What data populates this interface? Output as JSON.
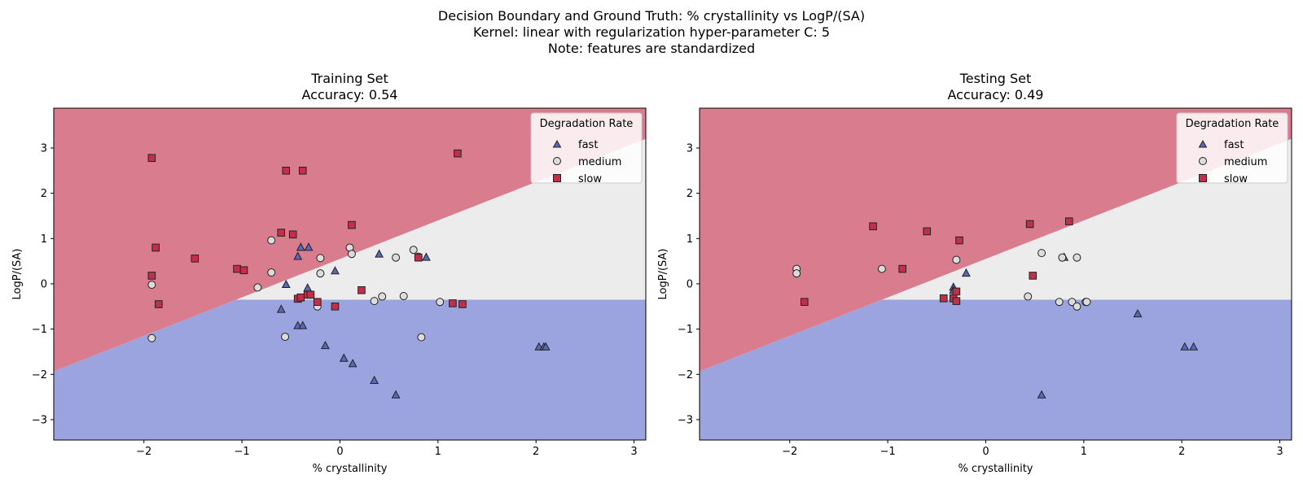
{
  "suptitle": [
    "Decision Boundary and Ground Truth: % crystallinity vs LogP/(SA)",
    "Kernel: linear with regularization hyper-parameter C: 5",
    "Note: features are standardized"
  ],
  "colors": {
    "region_slow": "#d97d8e",
    "region_medium": "#ececec",
    "region_fast": "#9ba4df",
    "marker_fast": "#5a68b8",
    "marker_medium": "#dcdcdc",
    "marker_slow": "#c0304a"
  },
  "chart_data": [
    {
      "type": "scatter",
      "title": "Training Set",
      "subtitle": "Accuracy: 0.54",
      "xlabel": "% crystallinity",
      "ylabel": "LogP/(SA)",
      "xlim": [
        -2.92,
        3.12
      ],
      "ylim": [
        -3.45,
        3.88
      ],
      "xticks": [
        -2,
        -1,
        0,
        1,
        2,
        3
      ],
      "yticks": [
        -3,
        -2,
        -1,
        0,
        1,
        2,
        3
      ],
      "grid": false,
      "legend_title": "Degradation Rate",
      "legend_position": "top-right",
      "decision_regions": {
        "upper_line": {
          "slope": 0.85,
          "intercept": 0.55
        },
        "lower_threshold": -0.35,
        "upper_class": "slow",
        "middle_class": "medium",
        "lower_class": "fast"
      },
      "series": [
        {
          "name": "fast",
          "marker": "triangle",
          "points": [
            [
              -0.4,
              0.8
            ],
            [
              -0.32,
              0.8
            ],
            [
              -0.43,
              0.6
            ],
            [
              -0.05,
              0.28
            ],
            [
              0.4,
              0.65
            ],
            [
              0.88,
              0.58
            ],
            [
              -0.55,
              -0.02
            ],
            [
              -0.33,
              -0.1
            ],
            [
              -0.6,
              -0.57
            ],
            [
              -0.43,
              -0.93
            ],
            [
              -0.38,
              -0.93
            ],
            [
              -0.15,
              -1.37
            ],
            [
              0.04,
              -1.65
            ],
            [
              0.13,
              -1.77
            ],
            [
              0.35,
              -2.14
            ],
            [
              0.57,
              -2.46
            ],
            [
              2.03,
              -1.4
            ],
            [
              2.08,
              -1.4
            ],
            [
              2.1,
              -1.4
            ]
          ]
        },
        {
          "name": "medium",
          "marker": "circle",
          "points": [
            [
              -1.92,
              -0.02
            ],
            [
              -1.92,
              -1.2
            ],
            [
              -0.7,
              0.96
            ],
            [
              -0.7,
              0.25
            ],
            [
              -0.84,
              -0.08
            ],
            [
              -0.56,
              -1.17
            ],
            [
              -0.2,
              0.57
            ],
            [
              -0.2,
              0.23
            ],
            [
              -0.23,
              -0.5
            ],
            [
              0.1,
              0.8
            ],
            [
              0.12,
              0.66
            ],
            [
              0.43,
              -0.28
            ],
            [
              0.35,
              -0.38
            ],
            [
              0.57,
              0.58
            ],
            [
              0.65,
              -0.27
            ],
            [
              0.75,
              0.75
            ],
            [
              0.8,
              0.6
            ],
            [
              1.02,
              -0.4
            ],
            [
              0.83,
              -1.18
            ]
          ]
        },
        {
          "name": "slow",
          "marker": "square",
          "points": [
            [
              -1.92,
              2.78
            ],
            [
              -1.92,
              0.18
            ],
            [
              -1.88,
              0.8
            ],
            [
              -1.85,
              -0.45
            ],
            [
              -1.48,
              0.56
            ],
            [
              -1.05,
              0.33
            ],
            [
              -0.98,
              0.3
            ],
            [
              -0.6,
              1.13
            ],
            [
              -0.48,
              1.09
            ],
            [
              -0.55,
              2.5
            ],
            [
              -0.38,
              2.5
            ],
            [
              -0.43,
              -0.33
            ],
            [
              -0.4,
              -0.3
            ],
            [
              -0.33,
              -0.24
            ],
            [
              -0.3,
              -0.24
            ],
            [
              -0.23,
              -0.4
            ],
            [
              -0.05,
              -0.5
            ],
            [
              0.12,
              1.3
            ],
            [
              0.22,
              -0.14
            ],
            [
              0.8,
              0.58
            ],
            [
              1.15,
              -0.43
            ],
            [
              1.2,
              2.88
            ],
            [
              1.25,
              -0.45
            ]
          ]
        }
      ]
    },
    {
      "type": "scatter",
      "title": "Testing Set",
      "subtitle": "Accuracy: 0.49",
      "xlabel": "% crystallinity",
      "ylabel": "LogP/(SA)",
      "xlim": [
        -2.92,
        3.12
      ],
      "ylim": [
        -3.45,
        3.88
      ],
      "xticks": [
        -2,
        -1,
        0,
        1,
        2,
        3
      ],
      "yticks": [
        -3,
        -2,
        -1,
        0,
        1,
        2,
        3
      ],
      "grid": false,
      "legend_title": "Degradation Rate",
      "legend_position": "top-right",
      "decision_regions": {
        "upper_line": {
          "slope": 0.85,
          "intercept": 0.55
        },
        "lower_threshold": -0.35,
        "upper_class": "slow",
        "middle_class": "medium",
        "lower_class": "fast"
      },
      "series": [
        {
          "name": "fast",
          "marker": "triangle",
          "points": [
            [
              -0.33,
              -0.08
            ],
            [
              -0.33,
              -0.15
            ],
            [
              -0.2,
              0.23
            ],
            [
              0.8,
              0.58
            ],
            [
              1.55,
              -0.67
            ],
            [
              2.03,
              -1.4
            ],
            [
              2.12,
              -1.4
            ],
            [
              0.57,
              -2.46
            ]
          ]
        },
        {
          "name": "medium",
          "marker": "circle",
          "points": [
            [
              -1.93,
              0.33
            ],
            [
              -1.93,
              0.23
            ],
            [
              -1.06,
              0.33
            ],
            [
              -0.3,
              0.53
            ],
            [
              0.43,
              -0.28
            ],
            [
              0.57,
              0.68
            ],
            [
              0.78,
              0.58
            ],
            [
              0.93,
              0.58
            ],
            [
              0.75,
              -0.4
            ],
            [
              0.88,
              -0.4
            ],
            [
              0.93,
              -0.5
            ],
            [
              1.02,
              -0.4
            ],
            [
              1.03,
              -0.4
            ]
          ]
        },
        {
          "name": "slow",
          "marker": "square",
          "points": [
            [
              -1.85,
              -0.4
            ],
            [
              -1.15,
              1.27
            ],
            [
              -0.6,
              1.16
            ],
            [
              -0.85,
              0.33
            ],
            [
              -0.27,
              0.96
            ],
            [
              0.45,
              1.32
            ],
            [
              0.85,
              1.38
            ],
            [
              0.48,
              0.18
            ],
            [
              -0.43,
              -0.32
            ],
            [
              -0.33,
              -0.32
            ],
            [
              -0.3,
              -0.17
            ],
            [
              -0.3,
              -0.38
            ]
          ]
        }
      ]
    }
  ]
}
